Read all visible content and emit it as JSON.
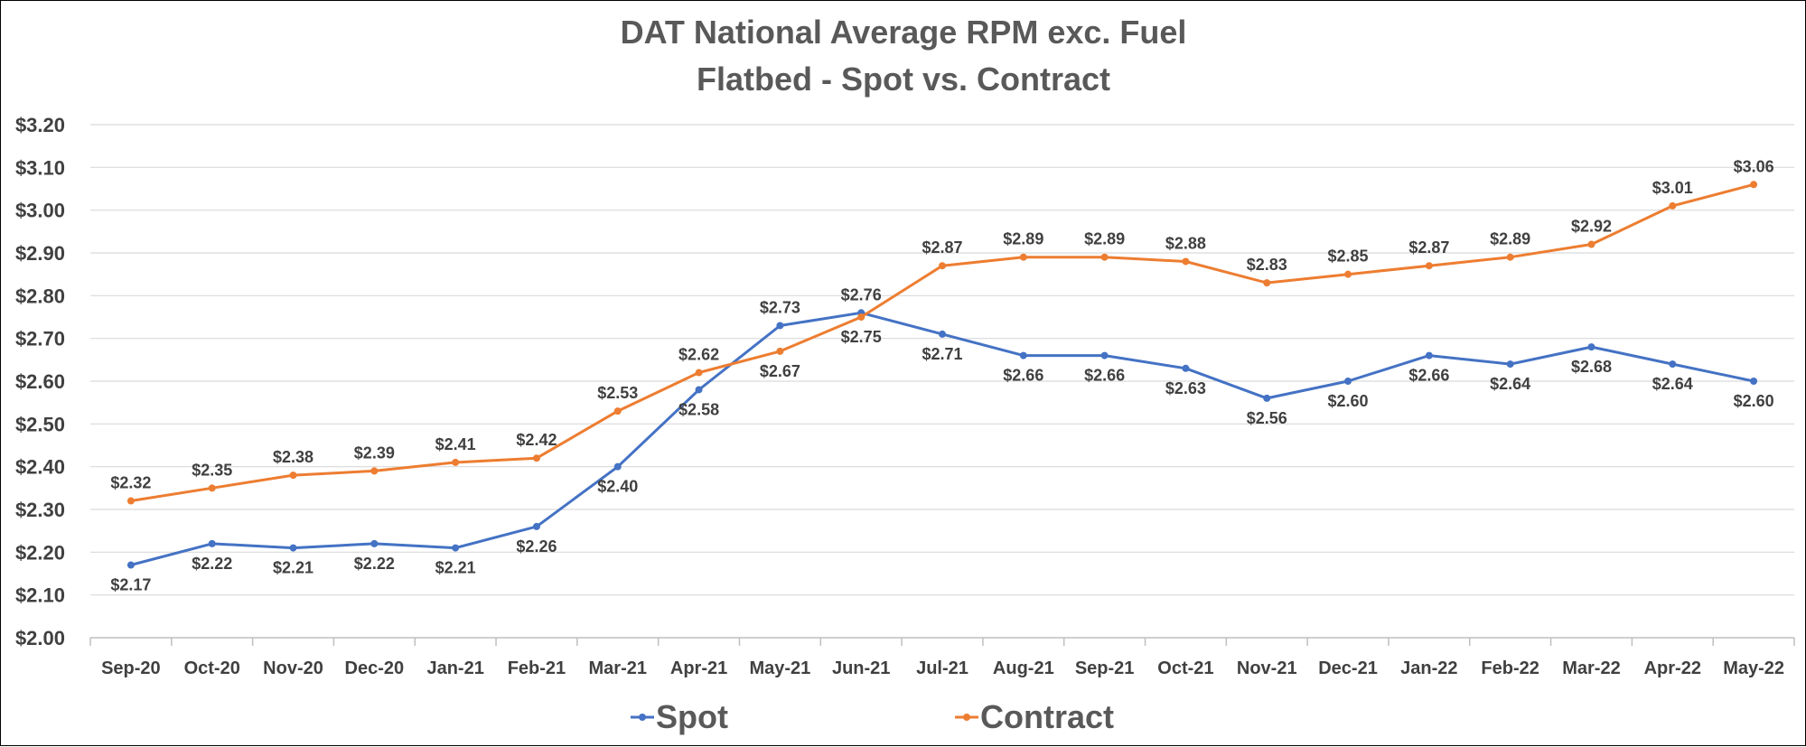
{
  "chart_data": {
    "type": "line",
    "title": "DAT National Average RPM exc. Fuel",
    "subtitle": "Flatbed - Spot vs. Contract",
    "categories": [
      "Sep-20",
      "Oct-20",
      "Nov-20",
      "Dec-20",
      "Jan-21",
      "Feb-21",
      "Mar-21",
      "Apr-21",
      "May-21",
      "Jun-21",
      "Jul-21",
      "Aug-21",
      "Sep-21",
      "Oct-21",
      "Nov-21",
      "Dec-21",
      "Jan-22",
      "Feb-22",
      "Mar-22",
      "Apr-22",
      "May-22"
    ],
    "ylim": [
      2.0,
      3.2
    ],
    "yticks": [
      2.0,
      2.1,
      2.2,
      2.3,
      2.4,
      2.5,
      2.6,
      2.7,
      2.8,
      2.9,
      3.0,
      3.1,
      3.2
    ],
    "ytick_labels": [
      "$2.00",
      "$2.10",
      "$2.20",
      "$2.30",
      "$2.40",
      "$2.50",
      "$2.60",
      "$2.70",
      "$2.80",
      "$2.90",
      "$3.00",
      "$3.10",
      "$3.20"
    ],
    "grid": true,
    "legend_position": "bottom",
    "series": [
      {
        "name": "Spot",
        "color": "#4472c4",
        "values": [
          2.17,
          2.22,
          2.21,
          2.22,
          2.21,
          2.26,
          2.4,
          2.58,
          2.73,
          2.76,
          2.71,
          2.66,
          2.66,
          2.63,
          2.56,
          2.6,
          2.66,
          2.64,
          2.68,
          2.64,
          2.6
        ],
        "labels": [
          "$2.17",
          "$2.22",
          "$2.21",
          "$2.22",
          "$2.21",
          "$2.26",
          "$2.40",
          "$2.58",
          "$2.73",
          "$2.76",
          "$2.71",
          "$2.66",
          "$2.66",
          "$2.63",
          "$2.56",
          "$2.60",
          "$2.66",
          "$2.64",
          "$2.68",
          "$2.64",
          "$2.60"
        ],
        "label_side": [
          "below",
          "below",
          "below",
          "below",
          "below",
          "below",
          "below",
          "below",
          "above",
          "above",
          "below",
          "below",
          "below",
          "below",
          "below",
          "below",
          "below",
          "below",
          "below",
          "below",
          "below"
        ]
      },
      {
        "name": "Contract",
        "color": "#ed7d31",
        "values": [
          2.32,
          2.35,
          2.38,
          2.39,
          2.41,
          2.42,
          2.53,
          2.62,
          2.67,
          2.75,
          2.87,
          2.89,
          2.89,
          2.88,
          2.83,
          2.85,
          2.87,
          2.89,
          2.92,
          3.01,
          3.06
        ],
        "labels": [
          "$2.32",
          "$2.35",
          "$2.38",
          "$2.39",
          "$2.41",
          "$2.42",
          "$2.53",
          "$2.62",
          "$2.67",
          "$2.75",
          "$2.87",
          "$2.89",
          "$2.89",
          "$2.88",
          "$2.83",
          "$2.85",
          "$2.87",
          "$2.89",
          "$2.92",
          "$3.01",
          "$3.06"
        ],
        "label_side": [
          "above",
          "above",
          "above",
          "above",
          "above",
          "above",
          "above",
          "above",
          "below",
          "below",
          "above",
          "above",
          "above",
          "above",
          "above",
          "above",
          "above",
          "above",
          "above",
          "above",
          "above"
        ]
      }
    ]
  }
}
